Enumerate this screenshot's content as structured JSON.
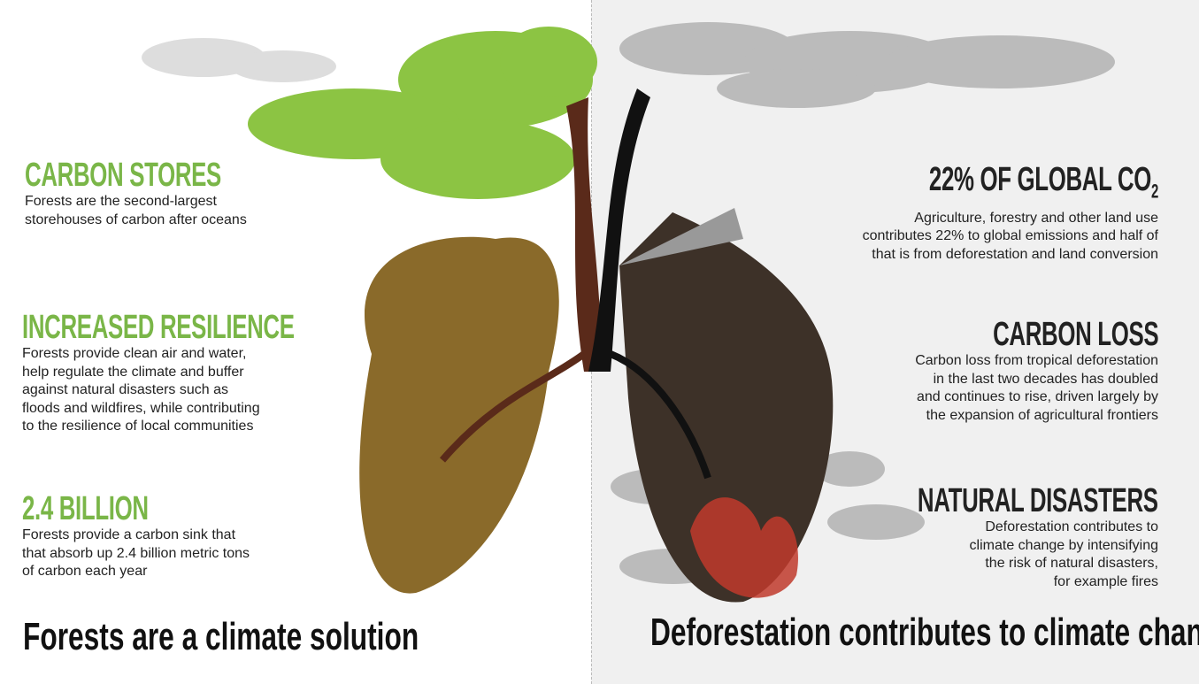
{
  "left": {
    "sections": [
      {
        "title": "CARBON STORES",
        "lines": [
          "Forests are the second-largest",
          "storehouses of carbon after oceans"
        ]
      },
      {
        "title": "INCREASED RESILIENCE",
        "lines": [
          "Forests provide clean air and water,",
          "help regulate the climate and buffer",
          "against natural disasters such as",
          "floods and wildfires, while contributing",
          "to the resilience of local communities"
        ]
      },
      {
        "title": "2.4 BILLION",
        "lines": [
          "Forests provide a carbon sink that",
          "that absorb up 2.4 billion metric tons",
          "of carbon each year"
        ]
      }
    ],
    "footer": "Forests are a climate solution"
  },
  "right": {
    "sections": [
      {
        "title": "22% OF GLOBAL CO",
        "subscript": "2",
        "lines": [
          "Agriculture, forestry and other land use",
          "contributes 22% to global emissions and half of",
          "that is from deforestation and land conversion"
        ]
      },
      {
        "title": "CARBON LOSS",
        "lines": [
          "Carbon loss from tropical deforestation",
          "in the last two decades has doubled",
          "and continues to rise, driven largely by",
          "the expansion of agricultural frontiers"
        ]
      },
      {
        "title": "NATURAL DISASTERS",
        "lines": [
          "Deforestation contributes to",
          "climate change by intensifying",
          "the risk of natural disasters,",
          "for example fires"
        ]
      }
    ],
    "footer": "Deforestation contributes to climate change"
  }
}
